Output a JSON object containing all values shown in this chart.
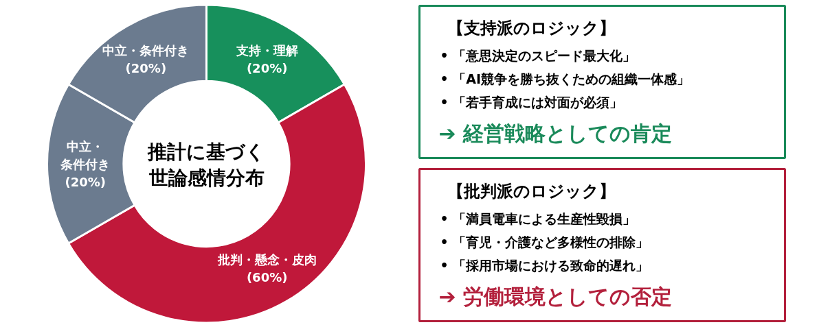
{
  "chart_data": [
    {
      "type": "donut",
      "title": "推計に基づく世論感情分布",
      "categories": [
        "支持・理解",
        "批判・懸念・皮肉",
        "中立・条件付き",
        "中立・条件付き"
      ],
      "values": [
        20,
        60,
        20,
        20
      ],
      "value_labels": [
        "(20%)",
        "(60%)",
        "(20%)",
        "(20%)"
      ],
      "colors": [
        "#17905c",
        "#c0183a",
        "#6b7b8f",
        "#6b7b8f"
      ]
    },
    {
      "type": "other",
      "title": "【支持派のロジック】",
      "color": "#1a8a5a",
      "annotations": [
        "• 「意思決定のスピード最大化」",
        "• 「AI競争を勝ち抜くための組織一体感」",
        "• 「若手育成には対面が必須」",
        "➔ 経営戦略としての肯定"
      ]
    },
    {
      "type": "other",
      "title": "【批判派のロジック】",
      "color": "#b3203c",
      "annotations": [
        "• 「満員電車による生産性毀損」",
        "• 「育児・介護など多様性の排除」",
        "• 「採用市場における致命的遅れ」",
        "➔ 労働環境としての否定"
      ]
    }
  ]
}
